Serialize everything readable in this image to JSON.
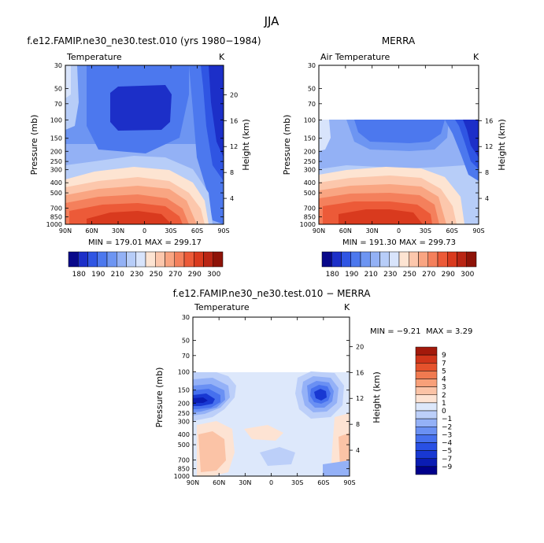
{
  "figure": {
    "season_title": "JJA"
  },
  "chart_data": [
    {
      "type": "heatmap",
      "panel": "model",
      "title": "f.e12.FAMIP.ne30_ne30.test.010 (yrs 1980−1984)",
      "variable": "Temperature",
      "units": "K",
      "ylabel": "Pressure (mb)",
      "ylabel_right": "Height (km)",
      "x_ticks": [
        "90N",
        "60N",
        "30N",
        "0",
        "30S",
        "60S",
        "90S"
      ],
      "y_ticks": [
        "30",
        "50",
        "70",
        "100",
        "150",
        "200",
        "250",
        "300",
        "400",
        "500",
        "700",
        "850",
        "1000"
      ],
      "height_ticks": [
        "20",
        "16",
        "12",
        "8",
        "4"
      ],
      "stats": "MIN = 179.01   MAX = 299.17",
      "colorbar_levels": [
        "180",
        "190",
        "210",
        "230",
        "250",
        "270",
        "290",
        "300"
      ],
      "data_range": [
        179.01,
        299.17
      ]
    },
    {
      "type": "heatmap",
      "panel": "obs",
      "title": "MERRA",
      "variable": "Air Temperature",
      "units": "K",
      "ylabel": "Pressure (mb)",
      "ylabel_right": "Height (km)",
      "x_ticks": [
        "90N",
        "60N",
        "30N",
        "0",
        "30S",
        "60S",
        "90S"
      ],
      "y_ticks": [
        "30",
        "50",
        "70",
        "100",
        "150",
        "200",
        "250",
        "300",
        "400",
        "500",
        "700",
        "850",
        "1000"
      ],
      "height_ticks": [
        "16",
        "12",
        "8",
        "4"
      ],
      "stats": "MIN = 191.30   MAX = 299.73",
      "colorbar_levels": [
        "180",
        "190",
        "210",
        "230",
        "250",
        "270",
        "290",
        "300"
      ],
      "data_range": [
        191.3,
        299.73
      ],
      "data_top_pressure": 100
    },
    {
      "type": "heatmap",
      "panel": "difference",
      "title": "f.e12.FAMIP.ne30_ne30.test.010 − MERRA",
      "variable": "Temperature",
      "units": "K",
      "ylabel": "Pressure (mb)",
      "ylabel_right": "Height (km)",
      "x_ticks": [
        "90N",
        "60N",
        "30N",
        "0",
        "30S",
        "60S",
        "90S"
      ],
      "y_ticks": [
        "30",
        "50",
        "70",
        "100",
        "150",
        "200",
        "250",
        "300",
        "400",
        "500",
        "700",
        "850",
        "1000"
      ],
      "height_ticks": [
        "20",
        "16",
        "12",
        "8",
        "4"
      ],
      "stats_min": "MIN = −9.21",
      "stats_max": "MAX =   3.29",
      "colorbar_levels": [
        "9",
        "7",
        "5",
        "4",
        "3",
        "2",
        "1",
        "0",
        "−1",
        "−2",
        "−3",
        "−4",
        "−5",
        "−7",
        "−9"
      ],
      "data_range": [
        -9.21,
        3.29
      ],
      "data_top_pressure": 100
    }
  ],
  "palettes": {
    "temperature": [
      "#08088a",
      "#1c2fc8",
      "#2f55e3",
      "#4c78ee",
      "#6d95f2",
      "#93b1f5",
      "#b7cdf8",
      "#d8e4fb",
      "#fde4d2",
      "#fcc7ac",
      "#f9a582",
      "#f4805c",
      "#ec5a38",
      "#d93a1e",
      "#b92514",
      "#8e1308"
    ],
    "difference": [
      "#00008b",
      "#0a1cb3",
      "#1838d2",
      "#2950e4",
      "#4670ee",
      "#6a90f3",
      "#94b1f7",
      "#bccff9",
      "#dde8fb",
      "#fde3d3",
      "#fbc3a6",
      "#f8a079",
      "#f07a50",
      "#e5522c",
      "#d0351a",
      "#a3190b"
    ]
  }
}
